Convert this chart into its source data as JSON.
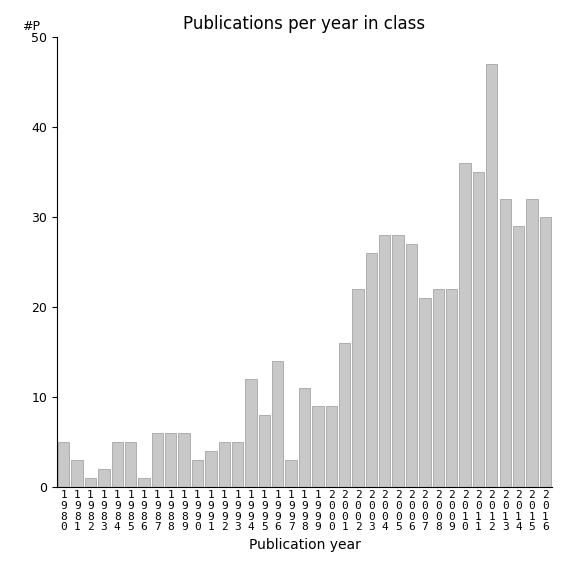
{
  "title": "Publications per year in class",
  "xlabel": "Publication year",
  "ylabel": "#P",
  "ylim": [
    0,
    50
  ],
  "yticks": [
    0,
    10,
    20,
    30,
    40,
    50
  ],
  "year_labels_row1": [
    "1",
    "1",
    "1",
    "1",
    "1",
    "1",
    "1",
    "1",
    "1",
    "1",
    "1",
    "1",
    "1",
    "1",
    "1",
    "1",
    "1",
    "1",
    "1",
    "1",
    "2",
    "2",
    "2",
    "2",
    "2",
    "2",
    "2",
    "2",
    "2",
    "2",
    "2",
    "2",
    "2",
    "2",
    "2",
    "2",
    "2"
  ],
  "year_labels_row2": [
    "9",
    "9",
    "9",
    "9",
    "9",
    "9",
    "9",
    "9",
    "9",
    "9",
    "9",
    "9",
    "9",
    "9",
    "9",
    "9",
    "9",
    "9",
    "9",
    "9",
    "0",
    "0",
    "0",
    "0",
    "0",
    "0",
    "0",
    "0",
    "0",
    "0",
    "0",
    "0",
    "0",
    "0",
    "0",
    "0",
    "0"
  ],
  "year_labels_row3": [
    "8",
    "8",
    "8",
    "8",
    "8",
    "8",
    "8",
    "8",
    "8",
    "8",
    "9",
    "9",
    "9",
    "9",
    "9",
    "9",
    "9",
    "9",
    "9",
    "9",
    "0",
    "0",
    "0",
    "0",
    "0",
    "0",
    "0",
    "0",
    "0",
    "0",
    "1",
    "1",
    "1",
    "1",
    "1",
    "1",
    "1"
  ],
  "year_labels_row4": [
    "0",
    "1",
    "2",
    "3",
    "4",
    "5",
    "6",
    "7",
    "8",
    "9",
    "0",
    "1",
    "2",
    "3",
    "4",
    "5",
    "6",
    "7",
    "8",
    "9",
    "0",
    "1",
    "2",
    "3",
    "4",
    "5",
    "6",
    "7",
    "8",
    "9",
    "0",
    "1",
    "2",
    "3",
    "4",
    "5",
    "6"
  ],
  "values": [
    5,
    3,
    1,
    2,
    5,
    5,
    1,
    6,
    6,
    6,
    3,
    4,
    5,
    5,
    12,
    8,
    14,
    3,
    11,
    9,
    9,
    16,
    22,
    26,
    28,
    28,
    27,
    21,
    22,
    22,
    36,
    35,
    47,
    32,
    29,
    32,
    30
  ],
  "bar_color": "#c8c8c8",
  "bar_edgecolor": "#999999",
  "bg_color": "#ffffff",
  "title_fontsize": 12,
  "label_fontsize": 10,
  "tick_fontsize": 9,
  "xtick_fontsize": 8
}
